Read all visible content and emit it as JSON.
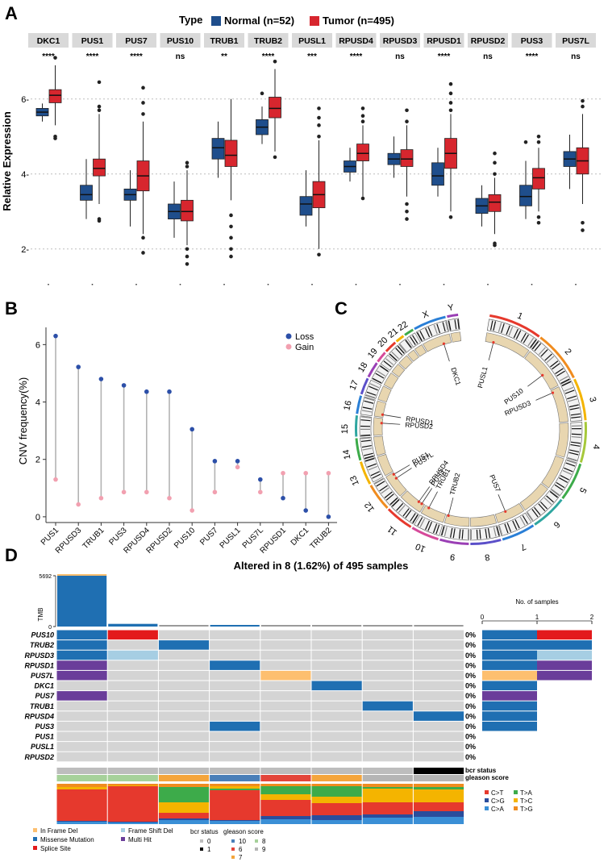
{
  "panel_labels": {
    "a": "A",
    "b": "B",
    "c": "C",
    "d": "D"
  },
  "colors": {
    "normal": "#1f4e8c",
    "tumor": "#d7262e",
    "strip": "#d9d9d9",
    "loss": "#2c4fa8",
    "gain": "#f2a0b0",
    "stem": "#b3b3b3",
    "missense": "#1f6fb2",
    "splice": "#e31a1c",
    "multi": "#6a3d9a",
    "frameshift": "#a6cee3",
    "inframe": "#fdbf6f",
    "cell_bg": "#d4d4d4",
    "ring": "#e8d6b0",
    "c_t": "#e6392d",
    "c_g": "#2a4d9c",
    "c_a": "#3a8fd6",
    "t_a": "#3dab4a",
    "t_c": "#f4b400",
    "t_g": "#f08c1f"
  },
  "chart_data": [
    {
      "type": "box",
      "title": "Type",
      "legend": [
        {
          "name": "Normal (n=52)",
          "key": "normal"
        },
        {
          "name": "Tumor (n=495)",
          "key": "tumor"
        }
      ],
      "ylabel": "Relative Expression",
      "ylim": [
        1.2,
        7.2
      ],
      "yticks": [
        2,
        4,
        6
      ],
      "ytick_labels": [
        "2-",
        "4-",
        "6-"
      ],
      "genes": [
        {
          "name": "DKC1",
          "sig": "****",
          "normal": [
            5.4,
            5.55,
            5.65,
            5.75,
            5.88
          ],
          "tumor": [
            5.3,
            5.9,
            6.1,
            6.25,
            6.9
          ],
          "n_out": [],
          "t_out": [
            5.0,
            4.95,
            7.1
          ]
        },
        {
          "name": "PUS1",
          "sig": "****",
          "normal": [
            2.8,
            3.3,
            3.45,
            3.7,
            4.4
          ],
          "tumor": [
            3.2,
            3.95,
            4.15,
            4.4,
            5.6
          ],
          "n_out": [],
          "t_out": [
            2.75,
            2.8,
            5.7,
            5.8,
            6.45
          ]
        },
        {
          "name": "PUS7",
          "sig": "****",
          "normal": [
            2.6,
            3.3,
            3.45,
            3.6,
            4.1
          ],
          "tumor": [
            2.4,
            3.55,
            3.95,
            4.35,
            5.4
          ],
          "n_out": [],
          "t_out": [
            1.9,
            2.3,
            5.6,
            5.9,
            6.3
          ]
        },
        {
          "name": "PUS10",
          "sig": "ns",
          "normal": [
            2.3,
            2.8,
            3.0,
            3.2,
            3.8
          ],
          "tumor": [
            2.1,
            2.75,
            3.0,
            3.3,
            4.1
          ],
          "n_out": [],
          "t_out": [
            1.6,
            1.8,
            2.0,
            4.2,
            4.3
          ]
        },
        {
          "name": "TRUB1",
          "sig": "**",
          "normal": [
            3.9,
            4.4,
            4.7,
            4.95,
            5.4
          ],
          "tumor": [
            3.3,
            4.2,
            4.5,
            4.9,
            6.0
          ],
          "n_out": [],
          "t_out": [
            1.8,
            2.0,
            2.3,
            2.6,
            2.9
          ]
        },
        {
          "name": "TRUB2",
          "sig": "****",
          "normal": [
            4.8,
            5.05,
            5.25,
            5.45,
            5.8
          ],
          "tumor": [
            4.6,
            5.5,
            5.75,
            6.05,
            6.8
          ],
          "n_out": [
            6.15
          ],
          "t_out": [
            4.45,
            7.0
          ]
        },
        {
          "name": "PUSL1",
          "sig": "***",
          "normal": [
            2.6,
            2.9,
            3.2,
            3.4,
            4.1
          ],
          "tumor": [
            2.0,
            3.1,
            3.45,
            3.8,
            4.9
          ],
          "n_out": [],
          "t_out": [
            1.85,
            5.0,
            5.3,
            5.5,
            5.75
          ]
        },
        {
          "name": "RPUSD4",
          "sig": "****",
          "normal": [
            3.8,
            4.05,
            4.2,
            4.35,
            4.7
          ],
          "tumor": [
            3.4,
            4.35,
            4.55,
            4.8,
            5.3
          ],
          "n_out": [],
          "t_out": [
            3.35,
            5.4,
            5.55,
            5.75
          ]
        },
        {
          "name": "RPUSD3",
          "sig": "ns",
          "normal": [
            3.9,
            4.25,
            4.4,
            4.55,
            5.0
          ],
          "tumor": [
            3.4,
            4.2,
            4.4,
            4.65,
            5.3
          ],
          "n_out": [],
          "t_out": [
            2.8,
            3.0,
            3.2,
            5.4,
            5.7
          ]
        },
        {
          "name": "RPUSD1",
          "sig": "****",
          "normal": [
            3.4,
            3.7,
            3.95,
            4.3,
            4.7
          ],
          "tumor": [
            3.0,
            4.15,
            4.55,
            4.95,
            5.6
          ],
          "n_out": [],
          "t_out": [
            2.85,
            5.7,
            5.9,
            6.15,
            6.4
          ]
        },
        {
          "name": "RPUSD2",
          "sig": "ns",
          "normal": [
            2.6,
            2.95,
            3.15,
            3.35,
            3.7
          ],
          "tumor": [
            2.4,
            3.0,
            3.25,
            3.45,
            3.9
          ],
          "n_out": [],
          "t_out": [
            2.1,
            2.15,
            4.0,
            4.3,
            4.55
          ]
        },
        {
          "name": "PUS3",
          "sig": "****",
          "normal": [
            2.8,
            3.15,
            3.4,
            3.7,
            4.35
          ],
          "tumor": [
            3.0,
            3.6,
            3.9,
            4.15,
            4.7
          ],
          "n_out": [
            4.85
          ],
          "t_out": [
            2.7,
            2.85,
            4.85,
            5.0
          ]
        },
        {
          "name": "PUS7L",
          "sig": "ns",
          "normal": [
            3.6,
            4.2,
            4.4,
            4.6,
            5.05
          ],
          "tumor": [
            3.2,
            4.0,
            4.35,
            4.7,
            5.6
          ],
          "n_out": [],
          "t_out": [
            2.5,
            2.7,
            5.8,
            5.95
          ]
        }
      ]
    },
    {
      "type": "lollipop",
      "ylabel": "CNV frequency(%)",
      "ylim": [
        -0.2,
        6.6
      ],
      "yticks": [
        0,
        2,
        4,
        6
      ],
      "legend": [
        {
          "name": "Loss",
          "key": "loss"
        },
        {
          "name": "Gain",
          "key": "gain"
        }
      ],
      "categories": [
        "PUS1",
        "RPUSD3",
        "TRUB1",
        "PUS3",
        "RPUSD4",
        "RPUSD2",
        "PUS10",
        "PUS7",
        "PUSL1",
        "PUS7L",
        "RPUSD1",
        "DKC1",
        "TRUB2"
      ],
      "loss": [
        6.3,
        5.22,
        4.8,
        4.58,
        4.36,
        4.36,
        3.05,
        1.94,
        1.94,
        1.3,
        0.65,
        0.22,
        0.0
      ],
      "gain": [
        1.3,
        0.43,
        0.65,
        0.86,
        0.86,
        0.65,
        0.22,
        0.86,
        1.73,
        0.86,
        1.52,
        1.52,
        1.52
      ]
    },
    {
      "type": "circos",
      "chromosomes": [
        "1",
        "2",
        "3",
        "4",
        "5",
        "6",
        "7",
        "8",
        "9",
        "10",
        "11",
        "12",
        "13",
        "14",
        "15",
        "16",
        "17",
        "18",
        "19",
        "20",
        "21",
        "22",
        "X",
        "Y"
      ],
      "genes": [
        {
          "name": "PUSL1",
          "chr": "1"
        },
        {
          "name": "DKC1",
          "chr": "X"
        },
        {
          "name": "PUS10",
          "chr": "2"
        },
        {
          "name": "RPUSD3",
          "chr": "3"
        },
        {
          "name": "RPUSD1",
          "chr": "16"
        },
        {
          "name": "RPUSD2",
          "chr": "15"
        },
        {
          "name": "PUS1",
          "chr": "12"
        },
        {
          "name": "PUS7L",
          "chr": "12"
        },
        {
          "name": "RPUSD4",
          "chr": "11"
        },
        {
          "name": "PUS3",
          "chr": "11"
        },
        {
          "name": "TRUB1",
          "chr": "10"
        },
        {
          "name": "TRUB2",
          "chr": "9"
        },
        {
          "name": "PUS7",
          "chr": "7"
        }
      ]
    },
    {
      "type": "oncoplot",
      "title": "Altered in 8 (1.62%) of 495 samples",
      "tmb_label": "TMB",
      "tmb_ticks": [
        0,
        5692
      ],
      "tmb": [
        5692,
        300,
        60,
        120,
        40,
        50,
        40,
        40
      ],
      "side_axis_label": "No. of samples",
      "side_ticks": [
        0,
        1,
        2
      ],
      "genes": [
        "PUS10",
        "TRUB2",
        "RPUSD3",
        "RPUSD1",
        "PUS7L",
        "DKC1",
        "PUS7",
        "TRUB1",
        "RPUSD4",
        "PUS3",
        "PUS1",
        "PUSL1",
        "RPUSD2"
      ],
      "percent": [
        "0%",
        "0%",
        "0%",
        "0%",
        "0%",
        "0%",
        "0%",
        "0%",
        "0%",
        "0%",
        "0%",
        "0%",
        "0%"
      ],
      "matrix": [
        [
          "missense",
          "splice",
          "",
          "",
          "",
          "",
          "",
          ""
        ],
        [
          "missense",
          "",
          "missense",
          "",
          "",
          "",
          "",
          ""
        ],
        [
          "missense",
          "frameshift",
          "",
          "",
          "",
          "",
          "",
          ""
        ],
        [
          "multi",
          "",
          "",
          "missense",
          "",
          "",
          "",
          ""
        ],
        [
          "multi",
          "",
          "",
          "",
          "inframe",
          "",
          "",
          ""
        ],
        [
          "",
          "",
          "",
          "",
          "",
          "missense",
          "",
          ""
        ],
        [
          "multi",
          "",
          "",
          "",
          "",
          "",
          "",
          ""
        ],
        [
          "",
          "",
          "",
          "",
          "",
          "",
          "missense",
          ""
        ],
        [
          "",
          "",
          "",
          "",
          "",
          "",
          "",
          "missense"
        ],
        [
          "",
          "",
          "",
          "missense",
          "",
          "",
          "",
          ""
        ],
        [
          "",
          "",
          "",
          "",
          "",
          "",
          "",
          ""
        ],
        [
          "",
          "",
          "",
          "",
          "",
          "",
          "",
          ""
        ],
        [
          "",
          "",
          "",
          "",
          "",
          "",
          "",
          ""
        ]
      ],
      "side_counts": [
        [
          {
            "type": "missense",
            "n": 1
          },
          {
            "type": "splice",
            "n": 1
          }
        ],
        [
          {
            "type": "missense",
            "n": 2
          }
        ],
        [
          {
            "type": "missense",
            "n": 1
          },
          {
            "type": "frameshift",
            "n": 1
          }
        ],
        [
          {
            "type": "missense",
            "n": 1
          },
          {
            "type": "multi",
            "n": 1
          }
        ],
        [
          {
            "type": "inframe",
            "n": 1
          },
          {
            "type": "multi",
            "n": 1
          }
        ],
        [
          {
            "type": "missense",
            "n": 1
          }
        ],
        [
          {
            "type": "multi",
            "n": 1
          }
        ],
        [
          {
            "type": "missense",
            "n": 1
          }
        ],
        [
          {
            "type": "missense",
            "n": 1
          }
        ],
        [
          {
            "type": "missense",
            "n": 1
          }
        ],
        [],
        [],
        []
      ],
      "bcr_status": [
        "0",
        "0",
        "0",
        "0",
        "0",
        "0",
        "0",
        "1"
      ],
      "gleason": [
        "8",
        "8",
        "7",
        "10",
        "6",
        "7",
        "9",
        "9"
      ],
      "titv": [
        [
          {
            "k": "c_a",
            "v": 0.06
          },
          {
            "k": "c_g",
            "v": 0.02
          },
          {
            "k": "c_t",
            "v": 0.78
          },
          {
            "k": "t_c",
            "v": 0.06
          },
          {
            "k": "t_g",
            "v": 0.08
          }
        ],
        [
          {
            "k": "c_a",
            "v": 0.04
          },
          {
            "k": "c_g",
            "v": 0.02
          },
          {
            "k": "c_t",
            "v": 0.88
          },
          {
            "k": "t_c",
            "v": 0.02
          },
          {
            "k": "t_g",
            "v": 0.04
          }
        ],
        [
          {
            "k": "c_a",
            "v": 0.1
          },
          {
            "k": "c_g",
            "v": 0.04
          },
          {
            "k": "c_t",
            "v": 0.14
          },
          {
            "k": "t_c",
            "v": 0.26
          },
          {
            "k": "t_a",
            "v": 0.38
          },
          {
            "k": "t_g",
            "v": 0.08
          }
        ],
        [
          {
            "k": "c_a",
            "v": 0.08
          },
          {
            "k": "c_g",
            "v": 0.02
          },
          {
            "k": "c_t",
            "v": 0.74
          },
          {
            "k": "t_a",
            "v": 0.04
          },
          {
            "k": "t_c",
            "v": 0.06
          },
          {
            "k": "t_g",
            "v": 0.06
          }
        ],
        [
          {
            "k": "c_a",
            "v": 0.12
          },
          {
            "k": "c_g",
            "v": 0.08
          },
          {
            "k": "c_t",
            "v": 0.4
          },
          {
            "k": "t_c",
            "v": 0.14
          },
          {
            "k": "t_a",
            "v": 0.2
          },
          {
            "k": "t_g",
            "v": 0.06
          }
        ],
        [
          {
            "k": "c_a",
            "v": 0.1
          },
          {
            "k": "c_g",
            "v": 0.12
          },
          {
            "k": "c_t",
            "v": 0.3
          },
          {
            "k": "t_c",
            "v": 0.16
          },
          {
            "k": "t_a",
            "v": 0.26
          },
          {
            "k": "t_g",
            "v": 0.06
          }
        ],
        [
          {
            "k": "c_a",
            "v": 0.16
          },
          {
            "k": "c_g",
            "v": 0.08
          },
          {
            "k": "c_t",
            "v": 0.3
          },
          {
            "k": "t_c",
            "v": 0.34
          },
          {
            "k": "t_a",
            "v": 0.04
          },
          {
            "k": "t_g",
            "v": 0.08
          }
        ],
        [
          {
            "k": "c_a",
            "v": 0.18
          },
          {
            "k": "c_g",
            "v": 0.14
          },
          {
            "k": "c_t",
            "v": 0.22
          },
          {
            "k": "t_c",
            "v": 0.32
          },
          {
            "k": "t_a",
            "v": 0.06
          },
          {
            "k": "t_g",
            "v": 0.08
          }
        ]
      ],
      "annotation_labels": {
        "bcr": "bcr status",
        "gleason": "gleason score"
      },
      "mutation_legend": [
        {
          "name": "In Frame Del",
          "key": "inframe"
        },
        {
          "name": "Frame Shift Del",
          "key": "frameshift"
        },
        {
          "name": "Missense Mutation",
          "key": "missense"
        },
        {
          "name": "Multi Hit",
          "key": "multi"
        },
        {
          "name": "Splice Site",
          "key": "splice"
        }
      ],
      "titv_legend": [
        {
          "name": "C>T",
          "key": "c_t"
        },
        {
          "name": "T>A",
          "key": "t_a"
        },
        {
          "name": "C>G",
          "key": "c_g"
        },
        {
          "name": "T>C",
          "key": "t_c"
        },
        {
          "name": "C>A",
          "key": "c_a"
        },
        {
          "name": "T>G",
          "key": "t_g"
        }
      ],
      "bcr_legend": {
        "title": "bcr status",
        "items": [
          {
            "name": "0",
            "color": "#bdbdbd"
          },
          {
            "name": "1",
            "color": "#000000"
          }
        ]
      },
      "gleason_legend": {
        "title": "gleason score",
        "items": [
          {
            "name": "10",
            "color": "#4a7fb8"
          },
          {
            "name": "6",
            "color": "#e3453a"
          },
          {
            "name": "7",
            "color": "#f4a53c"
          },
          {
            "name": "8",
            "color": "#a6d19a"
          },
          {
            "name": "9",
            "color": "#b5b5b5"
          }
        ]
      }
    }
  ]
}
